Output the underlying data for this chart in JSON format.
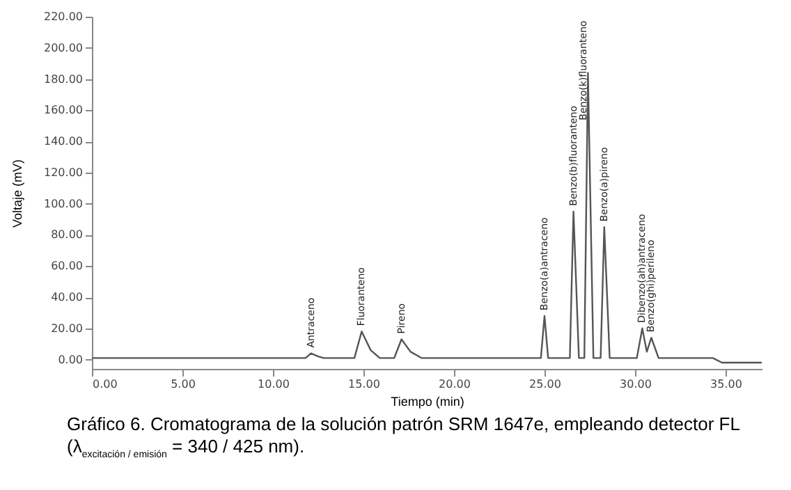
{
  "chart_data": {
    "type": "line",
    "xlabel": "Tiempo (min)",
    "ylabel": "Voltaje (mV)",
    "xlim": [
      0,
      37
    ],
    "ylim": [
      -6,
      220
    ],
    "xticks": [
      {
        "value": 0,
        "label": "0.00"
      },
      {
        "value": 5,
        "label": "5.00"
      },
      {
        "value": 10,
        "label": "10.00"
      },
      {
        "value": 15,
        "label": "15.00"
      },
      {
        "value": 20,
        "label": "20.00"
      },
      {
        "value": 25,
        "label": "25.00"
      },
      {
        "value": 30,
        "label": "30.00"
      },
      {
        "value": 35,
        "label": "35.00"
      }
    ],
    "yticks": [
      {
        "value": 0,
        "label": "0.00"
      },
      {
        "value": 20,
        "label": "20.00"
      },
      {
        "value": 40,
        "label": "40.00"
      },
      {
        "value": 60,
        "label": "60.00"
      },
      {
        "value": 80,
        "label": "80.00"
      },
      {
        "value": 100,
        "label": "100.00"
      },
      {
        "value": 120,
        "label": "120.00"
      },
      {
        "value": 140,
        "label": "140.00"
      },
      {
        "value": 160,
        "label": "160.00"
      },
      {
        "value": 180,
        "label": "180.00"
      },
      {
        "value": 200,
        "label": "200.00"
      },
      {
        "value": 220,
        "label": "220.00"
      }
    ],
    "grid": false,
    "legend": false,
    "marker": "none",
    "line_style": "solid",
    "series": [
      {
        "color": "#555555",
        "x": [
          0,
          11.8,
          12.1,
          12.5,
          12.8,
          14.5,
          14.9,
          15.4,
          15.9,
          16.7,
          17.1,
          17.6,
          18.2,
          24.8,
          25.0,
          25.2,
          26.4,
          26.6,
          26.9,
          27.2,
          27.4,
          27.7,
          28.1,
          28.3,
          28.6,
          30.1,
          30.4,
          30.65,
          30.9,
          31.3,
          34.3,
          34.8,
          37
        ],
        "values": [
          1,
          1,
          4,
          2,
          1,
          1,
          18,
          6,
          1,
          1,
          13,
          5,
          1,
          1,
          28,
          1,
          1,
          95,
          1,
          1,
          184,
          1,
          1,
          85,
          1,
          1,
          20,
          5,
          14,
          1,
          1,
          -2,
          -2
        ]
      }
    ],
    "annotations": [
      {
        "text": "Antraceno",
        "x": 12.1,
        "y": 4
      },
      {
        "text": "Fluoranteno",
        "x": 14.9,
        "y": 18
      },
      {
        "text": "Pireno",
        "x": 17.1,
        "y": 13
      },
      {
        "text": "Benzo(a)antraceno",
        "x": 25.0,
        "y": 28
      },
      {
        "text": "Benzo(b)fluoranteno",
        "x": 26.6,
        "y": 95
      },
      {
        "text": "Benzo(k)fluoranteno",
        "x": 27.15,
        "y": 150
      },
      {
        "text": "Benzo(a)pireno",
        "x": 28.3,
        "y": 85
      },
      {
        "text": "Dibenzo(ah)antraceno",
        "x": 30.4,
        "y": 20
      },
      {
        "text": "Benzo(ghi)perileno",
        "x": 30.9,
        "y": 14
      },
      "Gráfico 6. Cromatograma de la solución patrón SRM 1647e, empleando detector FL (λ$_{excitación / emisión}$ = 340 / 425 nm)."
    ]
  }
}
